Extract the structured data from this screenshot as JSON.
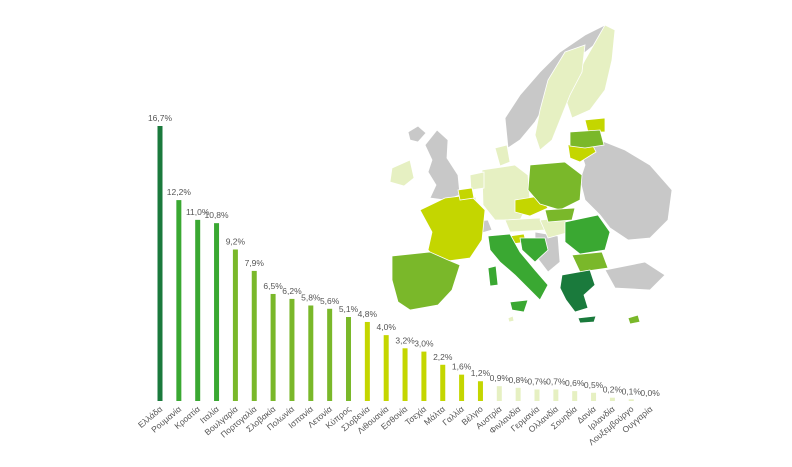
{
  "chart_data": {
    "type": "bar",
    "categories": [
      "Ελλάδα",
      "Ρουμανία",
      "Κροατία",
      "Ιταλία",
      "Βουλγαρία",
      "Πορτογαλία",
      "Σλοβακία",
      "Πολωνία",
      "Ισπανία",
      "Λετονία",
      "Κύπρος",
      "Σλοβενία",
      "Λιθουανία",
      "Εσθονία",
      "Τσεχία",
      "Μάλτα",
      "Γαλλία",
      "Βέλγιο",
      "Αυστρία",
      "Φινλανδία",
      "Γερμανία",
      "Ολλανδία",
      "Σουηδία",
      "Δανία",
      "Ιρλανδία",
      "Λουξεμβούργο",
      "Ουγγαρία"
    ],
    "values": [
      16.7,
      12.2,
      11.0,
      10.8,
      9.2,
      7.9,
      6.5,
      6.2,
      5.8,
      5.6,
      5.1,
      4.8,
      4.0,
      3.2,
      3.0,
      2.2,
      1.6,
      1.2,
      0.9,
      0.8,
      0.7,
      0.7,
      0.6,
      0.5,
      0.2,
      0.1,
      0.0
    ],
    "value_labels": [
      "16,7%",
      "12,2%",
      "11,0%",
      "10,8%",
      "9,2%",
      "7,9%",
      "6,5%",
      "6,2%",
      "5,8%",
      "5,6%",
      "5,1%",
      "4,8%",
      "4,0%",
      "3,2%",
      "3,0%",
      "2,2%",
      "1,6%",
      "1,2%",
      "0,9%",
      "0,8%",
      "0,7%",
      "0,7%",
      "0,6%",
      "0,5%",
      "0,2%",
      "0,1%",
      "0,0%"
    ],
    "colors": [
      "#1a7a3c",
      "#3aa832",
      "#3aa832",
      "#3aa832",
      "#7ab82a",
      "#7ab82a",
      "#7ab82a",
      "#7ab82a",
      "#7ab82a",
      "#7ab82a",
      "#7ab82a",
      "#c4d600",
      "#c4d600",
      "#c4d600",
      "#c4d600",
      "#c4d600",
      "#c4d600",
      "#c4d600",
      "#e6f0c2",
      "#e6f0c2",
      "#e6f0c2",
      "#e6f0c2",
      "#e6f0c2",
      "#e6f0c2",
      "#e6f0c2",
      "#e6f0c2",
      "#e6f0c2"
    ],
    "ylim": [
      0,
      16.7
    ],
    "grid": false,
    "legend": "none"
  },
  "map": {
    "colors": {
      "non_eu": "#c8c8c8",
      "dark_green": "#1a7a3c",
      "green": "#3aa832",
      "mid_green": "#7ab82a",
      "lime": "#c4d600",
      "pale": "#e6f0c2"
    }
  }
}
